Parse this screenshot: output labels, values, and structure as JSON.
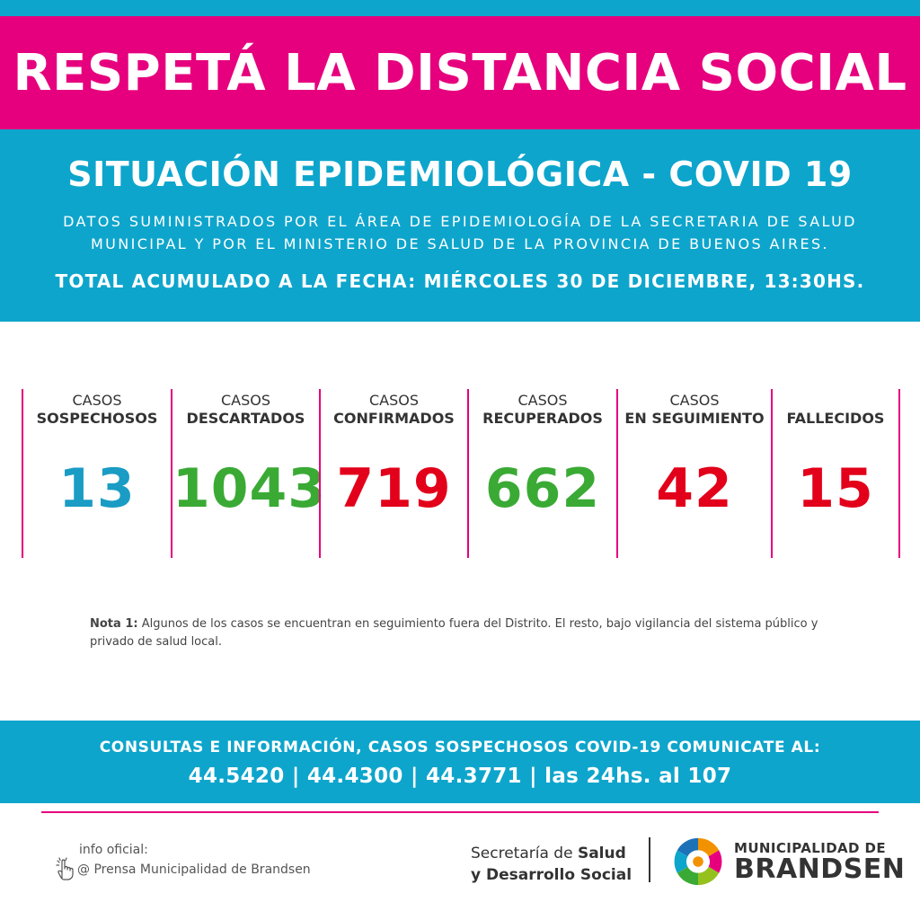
{
  "banner": {
    "title": "RESPETÁ LA DISTANCIA SOCIAL"
  },
  "header": {
    "title": "SITUACIÓN EPIDEMIOLÓGICA - COVID 19",
    "subtitle_line1": "DATOS SUMINISTRADOS POR EL ÁREA DE EPIDEMIOLOGÍA DE LA SECRETARIA DE SALUD",
    "subtitle_line2": "MUNICIPAL Y POR EL MINISTERIO DE SALUD DE LA PROVINCIA DE BUENOS AIRES.",
    "date": "TOTAL ACUMULADO A LA FECHA: MIÉRCOLES 30 DE DICIEMBRE, 13:30HS."
  },
  "stats": [
    {
      "line1": "CASOS",
      "line2": "SOSPECHOSOS",
      "value": "13",
      "color": "#1a9cc4"
    },
    {
      "line1": "CASOS",
      "line2": "DESCARTADOS",
      "value": "1043",
      "color": "#3aaa35"
    },
    {
      "line1": "CASOS",
      "line2": "CONFIRMADOS",
      "value": "719",
      "color": "#e2001a"
    },
    {
      "line1": "CASOS",
      "line2": "RECUPERADOS",
      "value": "662",
      "color": "#3aaa35"
    },
    {
      "line1": "CASOS",
      "line2": "EN SEGUIMIENTO",
      "value": "42",
      "color": "#e2001a"
    },
    {
      "line1": "",
      "line2": "FALLECIDOS",
      "value": "15",
      "color": "#e2001a"
    }
  ],
  "note": {
    "label": "Nota 1:",
    "text": " Algunos de los casos se encuentran en seguimiento fuera del Distrito. El resto, bajo vigilancia del sistema público y privado de salud local."
  },
  "footer": {
    "line1": "CONSULTAS E INFORMACIÓN, CASOS SOSPECHOSOS COVID-19 COMUNICATE AL:",
    "line2": "44.5420 | 44.4300 | 44.3771 | las 24hs. al 107"
  },
  "info": {
    "label": "info oficial:",
    "handle": "@ Prensa Municipalidad de Brandsen",
    "icon": "pointing-hand-icon"
  },
  "secretaria": {
    "line1_normal": "Secretaría de ",
    "line1_bold": "Salud",
    "line2_bold": "y Desarrollo Social"
  },
  "municipality": {
    "line1": "MUNICIPALIDAD DE",
    "line2": "BRANDSEN"
  },
  "colors": {
    "pink": "#e6007e",
    "blue": "#0ea5cc"
  }
}
